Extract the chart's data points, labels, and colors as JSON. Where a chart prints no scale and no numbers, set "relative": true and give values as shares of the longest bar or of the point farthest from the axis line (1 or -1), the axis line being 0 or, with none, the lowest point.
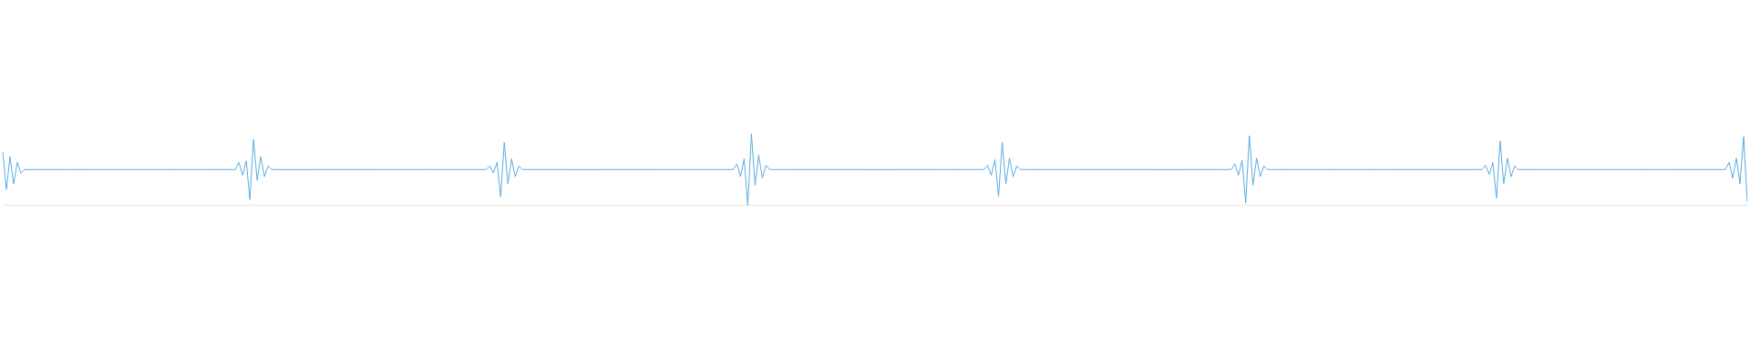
{
  "chart_data": {
    "type": "line",
    "relative": true,
    "grid": false,
    "legend": false,
    "marker": "none",
    "line_style": "solid",
    "categories": [
      null,
      null,
      null,
      null,
      null,
      null,
      null,
      null,
      null,
      null,
      null,
      null,
      null,
      null,
      null,
      null,
      null,
      null,
      null,
      null,
      null,
      null,
      null,
      null,
      null,
      null,
      null,
      null,
      null,
      null,
      null,
      null,
      null,
      null,
      null,
      null,
      null,
      null,
      null,
      null,
      null,
      null,
      null,
      null,
      null,
      null,
      null,
      null,
      null,
      null,
      null,
      null,
      null,
      null,
      null,
      null,
      null,
      null,
      null,
      null,
      null,
      null,
      null,
      null,
      null,
      null,
      null,
      null,
      null,
      null,
      null,
      null,
      null,
      null,
      null,
      null,
      null,
      null,
      null,
      null,
      null,
      null,
      null,
      null,
      null,
      null,
      null,
      null,
      null,
      null,
      null,
      null,
      null,
      null,
      null,
      null,
      null,
      null,
      null,
      null,
      null,
      null,
      null,
      null,
      null,
      null,
      null,
      null,
      null,
      null,
      null,
      null,
      null,
      null,
      null,
      null,
      null,
      null,
      null,
      null,
      null,
      null,
      null,
      null,
      null,
      null,
      null,
      null,
      null,
      null,
      null,
      null,
      null,
      null,
      null,
      null,
      null,
      null,
      null,
      null,
      null,
      null,
      null,
      null,
      null,
      null,
      null,
      null,
      null,
      null,
      null,
      null,
      null,
      null,
      null,
      null,
      null,
      null,
      null,
      null,
      null,
      null,
      null,
      null,
      null,
      null,
      null,
      null,
      null,
      null,
      null,
      null,
      null,
      null,
      null,
      null,
      null,
      null,
      null,
      null,
      null,
      null,
      null,
      null,
      null,
      null,
      null,
      null,
      null,
      null,
      null,
      null,
      null,
      null,
      null,
      null,
      null,
      null,
      null,
      null,
      null,
      null,
      null,
      null,
      null,
      null,
      null,
      null,
      null,
      null,
      null,
      null,
      null,
      null,
      null,
      null,
      null,
      null,
      null,
      null,
      null,
      null,
      null,
      null,
      null,
      null,
      null,
      null,
      null,
      null,
      null,
      null,
      null,
      null,
      null,
      null,
      null,
      null,
      null,
      null,
      null,
      null,
      null,
      null,
      null,
      null,
      null,
      null,
      null,
      null,
      null,
      null,
      null,
      null,
      null,
      null,
      null,
      null,
      null,
      null,
      null,
      null,
      null,
      null,
      null,
      null,
      null,
      null,
      null,
      null,
      null,
      null,
      null,
      null,
      null,
      null,
      null,
      null,
      null,
      null,
      null,
      null,
      null,
      null,
      null,
      null,
      null,
      null,
      null,
      null,
      null,
      null,
      null,
      null,
      null,
      null,
      null,
      null,
      null,
      null,
      null,
      null,
      null,
      null,
      null,
      null,
      null,
      null,
      null,
      null,
      null,
      null,
      null,
      null,
      null,
      null,
      null,
      null,
      null,
      null,
      null,
      null,
      null,
      null,
      null,
      null,
      null,
      null,
      null,
      null,
      null,
      null,
      null,
      null,
      null,
      null,
      null,
      null,
      null,
      null,
      null,
      null,
      null,
      null,
      null,
      null,
      null,
      null,
      null,
      null,
      null,
      null,
      null,
      null,
      null,
      null,
      null,
      null,
      null,
      null,
      null,
      null,
      null,
      null,
      null,
      null,
      null,
      null,
      null,
      null,
      null,
      null,
      null,
      null,
      null,
      null,
      null,
      null,
      null,
      null,
      null,
      null,
      null,
      null,
      null,
      null,
      null,
      null,
      null,
      null,
      null,
      null,
      null,
      null,
      null,
      null,
      null,
      null,
      null,
      null,
      null,
      null,
      null,
      null,
      null,
      null,
      null,
      null,
      null,
      null,
      null,
      null,
      null,
      null,
      null,
      null,
      null,
      null,
      null,
      null,
      null,
      null,
      null,
      null,
      null,
      null,
      null,
      null,
      null,
      null,
      null,
      null,
      null,
      null,
      null,
      null,
      null,
      null,
      null,
      null,
      null,
      null,
      null,
      null,
      null,
      null,
      null,
      null,
      null,
      null,
      null,
      null,
      null,
      null,
      null,
      null,
      null,
      null,
      null,
      null,
      null,
      null,
      null,
      null,
      null,
      null,
      null,
      null,
      null,
      null,
      null,
      null,
      null,
      null,
      null,
      null,
      null,
      null,
      null,
      null,
      null
    ],
    "series": [
      {
        "color": "#5aade2",
        "values": [
          0.75,
          0.22,
          0.68,
          0.3,
          0.6,
          0.45,
          0.5,
          0.5,
          0.5,
          0.5,
          0.5,
          0.5,
          0.5,
          0.5,
          0.5,
          0.5,
          0.5,
          0.5,
          0.5,
          0.5,
          0.5,
          0.5,
          0.5,
          0.5,
          0.5,
          0.5,
          0.5,
          0.5,
          0.5,
          0.5,
          0.5,
          0.5,
          0.5,
          0.5,
          0.5,
          0.5,
          0.5,
          0.5,
          0.5,
          0.5,
          0.5,
          0.5,
          0.5,
          0.5,
          0.5,
          0.5,
          0.5,
          0.5,
          0.5,
          0.5,
          0.5,
          0.5,
          0.5,
          0.5,
          0.5,
          0.5,
          0.5,
          0.5,
          0.5,
          0.5,
          0.5,
          0.5,
          0.5,
          0.5,
          0.5,
          0.6,
          0.42,
          0.62,
          0.08,
          0.92,
          0.35,
          0.68,
          0.4,
          0.55,
          0.5,
          0.5,
          0.5,
          0.5,
          0.5,
          0.5,
          0.5,
          0.5,
          0.5,
          0.5,
          0.5,
          0.5,
          0.5,
          0.5,
          0.5,
          0.5,
          0.5,
          0.5,
          0.5,
          0.5,
          0.5,
          0.5,
          0.5,
          0.5,
          0.5,
          0.5,
          0.5,
          0.5,
          0.5,
          0.5,
          0.5,
          0.5,
          0.5,
          0.5,
          0.5,
          0.5,
          0.5,
          0.5,
          0.5,
          0.5,
          0.5,
          0.5,
          0.5,
          0.5,
          0.5,
          0.5,
          0.5,
          0.5,
          0.5,
          0.5,
          0.5,
          0.5,
          0.5,
          0.5,
          0.5,
          0.5,
          0.5,
          0.5,
          0.5,
          0.5,
          0.55,
          0.45,
          0.6,
          0.12,
          0.88,
          0.3,
          0.65,
          0.4,
          0.55,
          0.5,
          0.5,
          0.5,
          0.5,
          0.5,
          0.5,
          0.5,
          0.5,
          0.5,
          0.5,
          0.5,
          0.5,
          0.5,
          0.5,
          0.5,
          0.5,
          0.5,
          0.5,
          0.5,
          0.5,
          0.5,
          0.5,
          0.5,
          0.5,
          0.5,
          0.5,
          0.5,
          0.5,
          0.5,
          0.5,
          0.5,
          0.5,
          0.5,
          0.5,
          0.5,
          0.5,
          0.5,
          0.5,
          0.5,
          0.5,
          0.5,
          0.5,
          0.5,
          0.5,
          0.5,
          0.5,
          0.5,
          0.5,
          0.5,
          0.5,
          0.5,
          0.5,
          0.5,
          0.5,
          0.5,
          0.5,
          0.5,
          0.5,
          0.5,
          0.58,
          0.4,
          0.65,
          0.0,
          1,
          0.28,
          0.7,
          0.38,
          0.56,
          0.5,
          0.5,
          0.5,
          0.5,
          0.5,
          0.5,
          0.5,
          0.5,
          0.5,
          0.5,
          0.5,
          0.5,
          0.5,
          0.5,
          0.5,
          0.5,
          0.5,
          0.5,
          0.5,
          0.5,
          0.5,
          0.5,
          0.5,
          0.5,
          0.5,
          0.5,
          0.5,
          0.5,
          0.5,
          0.5,
          0.5,
          0.5,
          0.5,
          0.5,
          0.5,
          0.5,
          0.5,
          0.5,
          0.5,
          0.5,
          0.5,
          0.5,
          0.5,
          0.5,
          0.5,
          0.5,
          0.5,
          0.5,
          0.5,
          0.5,
          0.5,
          0.5,
          0.5,
          0.5,
          0.5,
          0.5,
          0.5,
          0.5,
          0.5,
          0.5,
          0.56,
          0.42,
          0.64,
          0.12,
          0.88,
          0.3,
          0.66,
          0.4,
          0.55,
          0.5,
          0.5,
          0.5,
          0.5,
          0.5,
          0.5,
          0.5,
          0.5,
          0.5,
          0.5,
          0.5,
          0.5,
          0.5,
          0.5,
          0.5,
          0.5,
          0.5,
          0.5,
          0.5,
          0.5,
          0.5,
          0.5,
          0.5,
          0.5,
          0.5,
          0.5,
          0.5,
          0.5,
          0.5,
          0.5,
          0.5,
          0.5,
          0.5,
          0.5,
          0.5,
          0.5,
          0.5,
          0.5,
          0.5,
          0.5,
          0.5,
          0.5,
          0.5,
          0.5,
          0.5,
          0.5,
          0.5,
          0.5,
          0.5,
          0.5,
          0.5,
          0.5,
          0.5,
          0.5,
          0.5,
          0.5,
          0.5,
          0.5,
          0.5,
          0.58,
          0.42,
          0.63,
          0.03,
          0.97,
          0.28,
          0.66,
          0.4,
          0.55,
          0.5,
          0.5,
          0.5,
          0.5,
          0.5,
          0.5,
          0.5,
          0.5,
          0.5,
          0.5,
          0.5,
          0.5,
          0.5,
          0.5,
          0.5,
          0.5,
          0.5,
          0.5,
          0.5,
          0.5,
          0.5,
          0.5,
          0.5,
          0.5,
          0.5,
          0.5,
          0.5,
          0.5,
          0.5,
          0.5,
          0.5,
          0.5,
          0.5,
          0.5,
          0.5,
          0.5,
          0.5,
          0.5,
          0.5,
          0.5,
          0.5,
          0.5,
          0.5,
          0.5,
          0.5,
          0.5,
          0.5,
          0.5,
          0.5,
          0.5,
          0.5,
          0.5,
          0.5,
          0.5,
          0.5,
          0.5,
          0.5,
          0.5,
          0.5,
          0.5,
          0.56,
          0.43,
          0.6,
          0.1,
          0.9,
          0.3,
          0.66,
          0.4,
          0.55,
          0.5,
          0.5,
          0.5,
          0.5,
          0.5,
          0.5,
          0.5,
          0.5,
          0.5,
          0.5,
          0.5,
          0.5,
          0.5,
          0.5,
          0.5,
          0.5,
          0.5,
          0.5,
          0.5,
          0.5,
          0.5,
          0.5,
          0.5,
          0.5,
          0.5,
          0.5,
          0.5,
          0.5,
          0.5,
          0.5,
          0.5,
          0.5,
          0.5,
          0.5,
          0.5,
          0.5,
          0.5,
          0.5,
          0.5,
          0.5,
          0.5,
          0.5,
          0.5,
          0.5,
          0.5,
          0.5,
          0.5,
          0.5,
          0.5,
          0.5,
          0.5,
          0.5,
          0.5,
          0.5,
          0.5,
          0.5,
          0.5,
          0.5,
          0.6,
          0.38,
          0.66,
          0.3,
          0.96,
          0.05
        ]
      }
    ]
  }
}
